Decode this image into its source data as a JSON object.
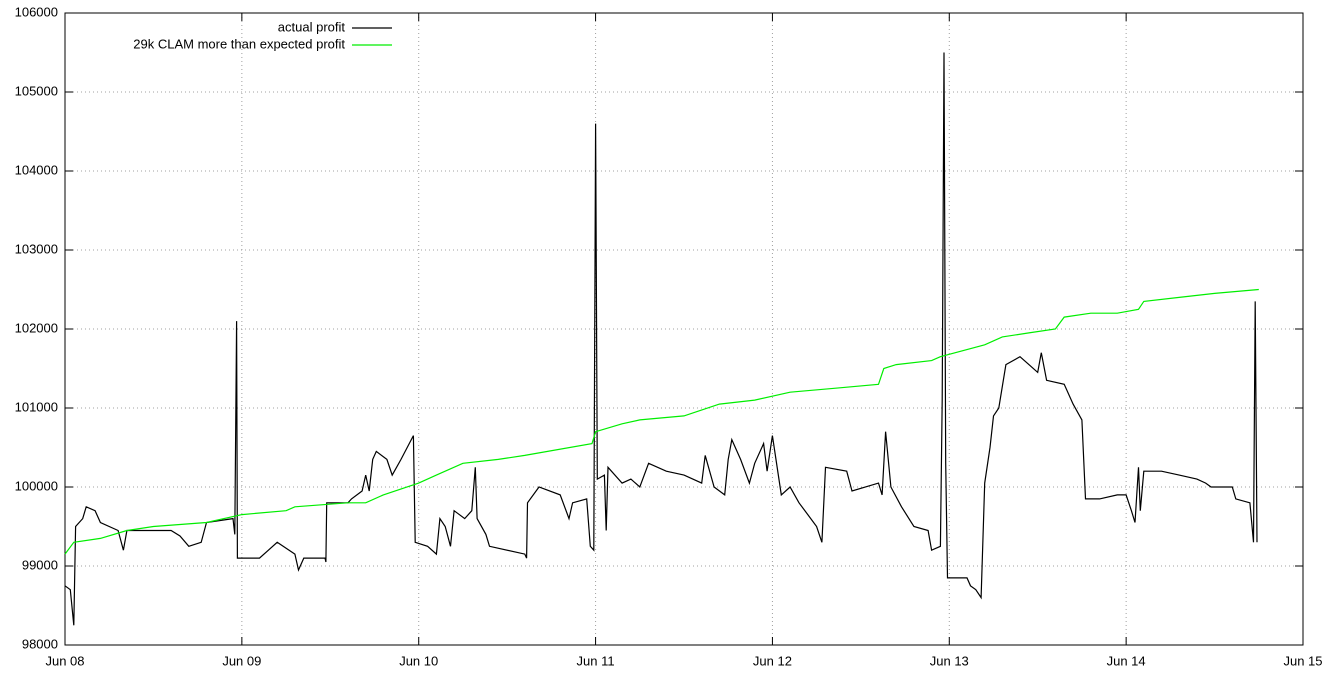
{
  "chart_data": {
    "type": "line",
    "xlim": [
      0,
      7
    ],
    "xticks": [
      {
        "value": 0,
        "label": "Jun 08"
      },
      {
        "value": 1,
        "label": "Jun 09"
      },
      {
        "value": 2,
        "label": "Jun 10"
      },
      {
        "value": 3,
        "label": "Jun 11"
      },
      {
        "value": 4,
        "label": "Jun 12"
      },
      {
        "value": 5,
        "label": "Jun 13"
      },
      {
        "value": 6,
        "label": "Jun 14"
      },
      {
        "value": 7,
        "label": "Jun 15"
      }
    ],
    "ylim": [
      98000,
      106000
    ],
    "yticks": [
      98000,
      99000,
      100000,
      101000,
      102000,
      103000,
      104000,
      105000,
      106000
    ],
    "grid": true,
    "legend": "top-left",
    "series": [
      {
        "name": "actual profit",
        "color": "#000000",
        "x": [
          0,
          0.03,
          0.05,
          0.06,
          0.1,
          0.12,
          0.17,
          0.2,
          0.3,
          0.33,
          0.35,
          0.5,
          0.6,
          0.65,
          0.7,
          0.77,
          0.8,
          0.95,
          0.96,
          0.97,
          0.975,
          1.1,
          1.15,
          1.2,
          1.3,
          1.32,
          1.35,
          1.47,
          1.475,
          1.48,
          1.6,
          1.62,
          1.68,
          1.7,
          1.72,
          1.74,
          1.76,
          1.82,
          1.85,
          1.9,
          1.97,
          1.98,
          2.05,
          2.1,
          2.12,
          2.15,
          2.18,
          2.2,
          2.26,
          2.3,
          2.32,
          2.33,
          2.38,
          2.4,
          2.6,
          2.61,
          2.615,
          2.68,
          2.8,
          2.85,
          2.87,
          2.95,
          2.97,
          2.99,
          3.0,
          3.01,
          3.05,
          3.06,
          3.07,
          3.15,
          3.2,
          3.25,
          3.3,
          3.4,
          3.5,
          3.6,
          3.62,
          3.67,
          3.73,
          3.75,
          3.77,
          3.82,
          3.87,
          3.9,
          3.95,
          3.97,
          4.0,
          4.05,
          4.1,
          4.15,
          4.2,
          4.25,
          4.28,
          4.3,
          4.42,
          4.45,
          4.6,
          4.62,
          4.64,
          4.67,
          4.73,
          4.8,
          4.88,
          4.9,
          4.95,
          4.96,
          4.97,
          4.98,
          4.99,
          5.1,
          5.12,
          5.15,
          5.18,
          5.2,
          5.23,
          5.25,
          5.28,
          5.32,
          5.4,
          5.45,
          5.5,
          5.52,
          5.55,
          5.65,
          5.7,
          5.75,
          5.77,
          5.85,
          5.95,
          6.0,
          6.03,
          6.05,
          6.07,
          6.08,
          6.1,
          6.2,
          6.3,
          6.4,
          6.45,
          6.48,
          6.6,
          6.62,
          6.7,
          6.72,
          6.73,
          6.74
        ],
        "values": [
          98750,
          98700,
          98250,
          99500,
          99600,
          99750,
          99700,
          99550,
          99450,
          99200,
          99450,
          99450,
          99450,
          99380,
          99250,
          99300,
          99550,
          99600,
          99400,
          102100,
          99100,
          99100,
          99200,
          99300,
          99150,
          98950,
          99100,
          99100,
          99050,
          99800,
          99800,
          99850,
          99950,
          100150,
          99950,
          100350,
          100450,
          100350,
          100150,
          100350,
          100650,
          99300,
          99250,
          99150,
          99600,
          99500,
          99250,
          99700,
          99600,
          99700,
          100250,
          99600,
          99400,
          99250,
          99150,
          99100,
          99800,
          100000,
          99900,
          99600,
          99800,
          99850,
          99250,
          99200,
          104600,
          100100,
          100150,
          99450,
          100250,
          100050,
          100100,
          100000,
          100300,
          100200,
          100150,
          100050,
          100400,
          100000,
          99900,
          100350,
          100600,
          100350,
          100050,
          100300,
          100550,
          100200,
          100650,
          99900,
          100000,
          99800,
          99650,
          99500,
          99300,
          100250,
          100200,
          99950,
          100050,
          99900,
          100700,
          100000,
          99750,
          99500,
          99450,
          99200,
          99250,
          101100,
          105500,
          100300,
          98850,
          98850,
          98750,
          98700,
          98600,
          100050,
          100500,
          100900,
          101000,
          101550,
          101650,
          101550,
          101450,
          101700,
          101350,
          101300,
          101050,
          100850,
          99850,
          99850,
          99900,
          99900,
          99700,
          99550,
          100250,
          99700,
          100200,
          100200,
          100150,
          100100,
          100050,
          100000,
          100000,
          99850,
          99800,
          99300,
          102350,
          99300
        ]
      },
      {
        "name": "29k CLAM more than expected profit",
        "color": "#00ee00",
        "x": [
          0,
          0.05,
          0.2,
          0.35,
          0.5,
          0.8,
          1.0,
          1.25,
          1.3,
          1.6,
          1.7,
          1.8,
          2.0,
          2.1,
          2.25,
          2.45,
          2.6,
          2.98,
          3.0,
          3.15,
          3.25,
          3.5,
          3.7,
          3.9,
          4.1,
          4.35,
          4.6,
          4.63,
          4.7,
          4.9,
          4.95,
          5.2,
          5.3,
          5.45,
          5.6,
          5.65,
          5.8,
          5.95,
          6.07,
          6.1,
          6.3,
          6.5,
          6.75
        ],
        "values": [
          99150,
          99300,
          99350,
          99450,
          99500,
          99550,
          99650,
          99700,
          99750,
          99800,
          99800,
          99900,
          100050,
          100150,
          100300,
          100350,
          100400,
          100550,
          100700,
          100800,
          100850,
          100900,
          101050,
          101100,
          101200,
          101250,
          101300,
          101500,
          101550,
          101600,
          101650,
          101800,
          101900,
          101950,
          102000,
          102150,
          102200,
          102200,
          102250,
          102350,
          102400,
          102450,
          102500
        ]
      }
    ]
  }
}
